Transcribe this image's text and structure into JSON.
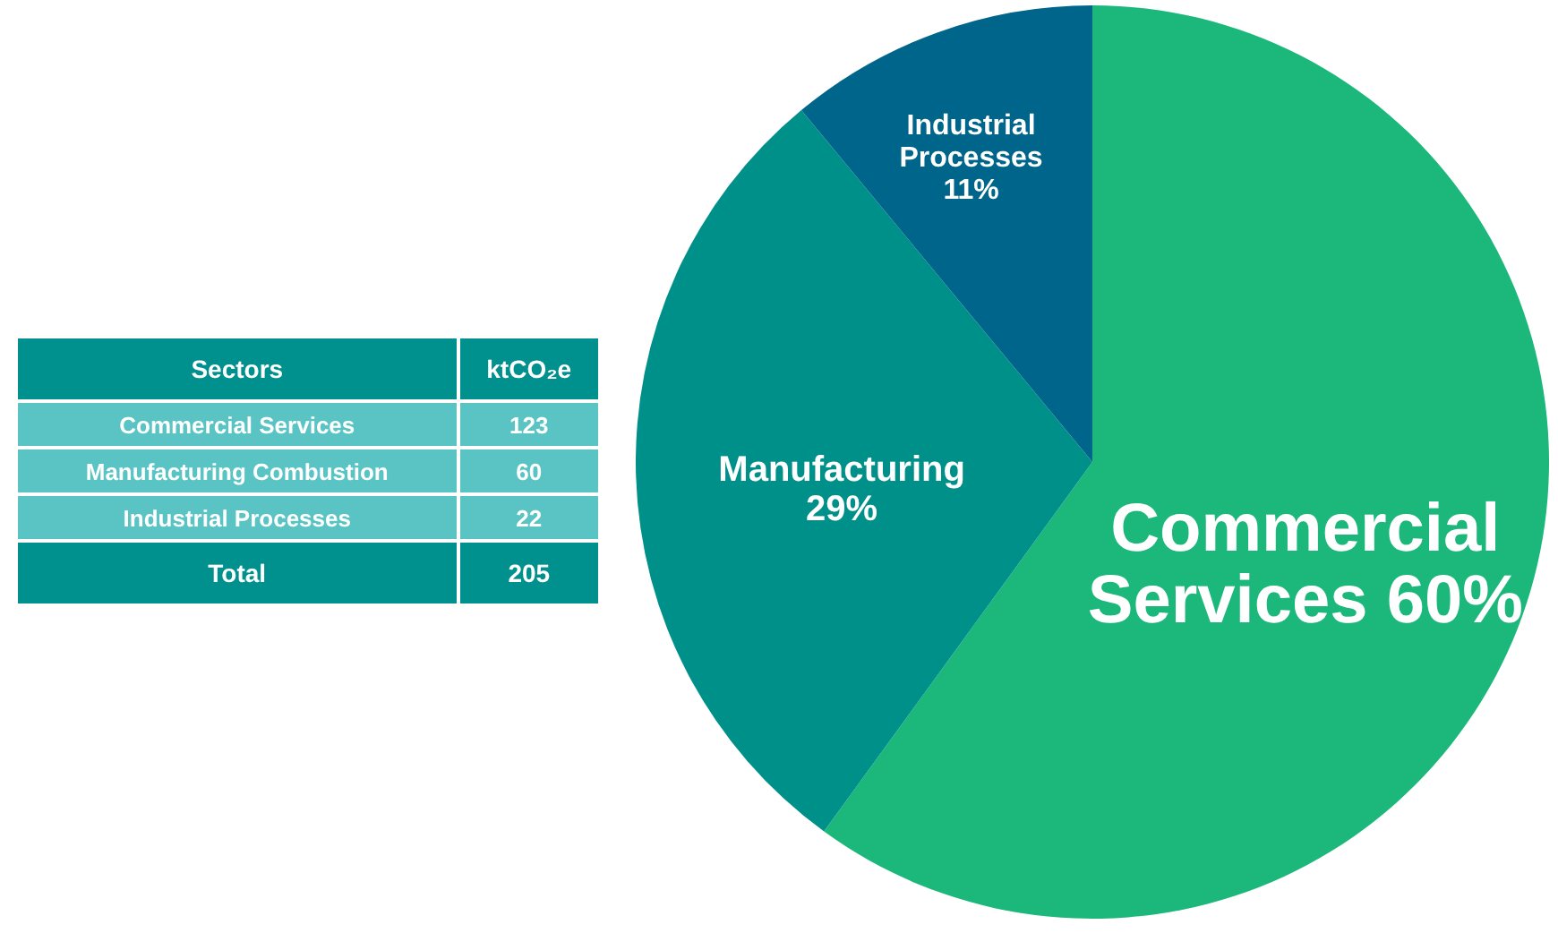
{
  "chart_data": [
    {
      "type": "other",
      "xlabel": "Sectors",
      "ylabel": "ktCO₂e",
      "categories": [
        "Commercial Services",
        "Manufacturing Combustion",
        "Industrial Processes"
      ],
      "values": [
        123,
        60,
        22
      ],
      "totals": [
        "205"
      ],
      "annotations": [
        "Total"
      ],
      "data_labels": true
    },
    {
      "type": "pie",
      "categories": [
        "Commercial Services",
        "Manufacturing",
        "Industrial Processes"
      ],
      "values": [
        60,
        29,
        11
      ],
      "colors": [
        "#1cb77b",
        "#00908a",
        "#00658a"
      ],
      "value_labels": [
        "60%",
        "29%",
        "11%"
      ]
    }
  ]
}
